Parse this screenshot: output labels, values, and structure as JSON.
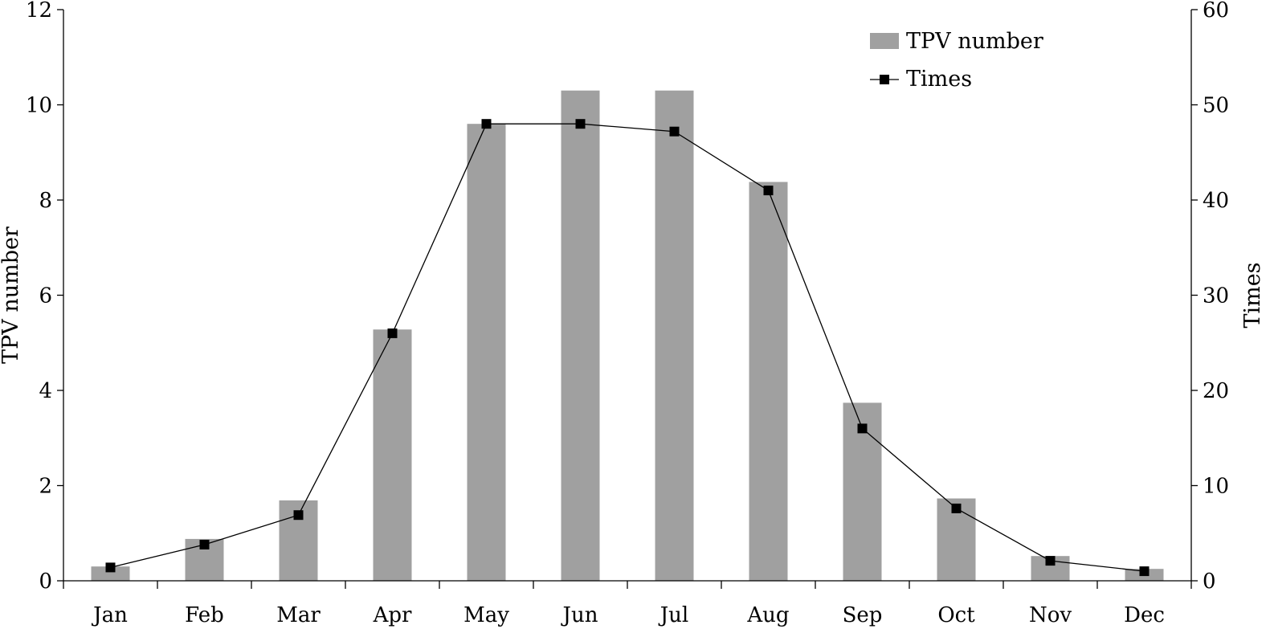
{
  "chart_data": {
    "type": "bar",
    "categories": [
      "Jan",
      "Feb",
      "Mar",
      "Apr",
      "May",
      "Jun",
      "Jul",
      "Aug",
      "Sep",
      "Oct",
      "Nov",
      "Dec"
    ],
    "series": [
      {
        "name": "TPV  number",
        "type": "bar",
        "axis": "left",
        "color": "#a0a0a0",
        "values": [
          0.3,
          0.88,
          1.69,
          5.28,
          9.6,
          10.3,
          10.3,
          8.38,
          3.74,
          1.73,
          0.52,
          0.25
        ]
      },
      {
        "name": "Times",
        "type": "line",
        "axis": "right",
        "color": "#000000",
        "marker": "square",
        "values": [
          1.4,
          3.8,
          6.9,
          26,
          48,
          48,
          47.2,
          41,
          16,
          7.6,
          2.1,
          1
        ]
      }
    ],
    "ylabel": "TPV  number",
    "ylabel_right": "Times",
    "xlabel": "",
    "ylim": [
      0,
      12
    ],
    "ylim_right": [
      0,
      60
    ],
    "yticks": [
      "0",
      "2",
      "4",
      "6",
      "8",
      "10",
      "12"
    ],
    "yticks_right": [
      "0",
      "10",
      "20",
      "30",
      "40",
      "50",
      "60"
    ],
    "grid": false,
    "legend": "top-right"
  }
}
